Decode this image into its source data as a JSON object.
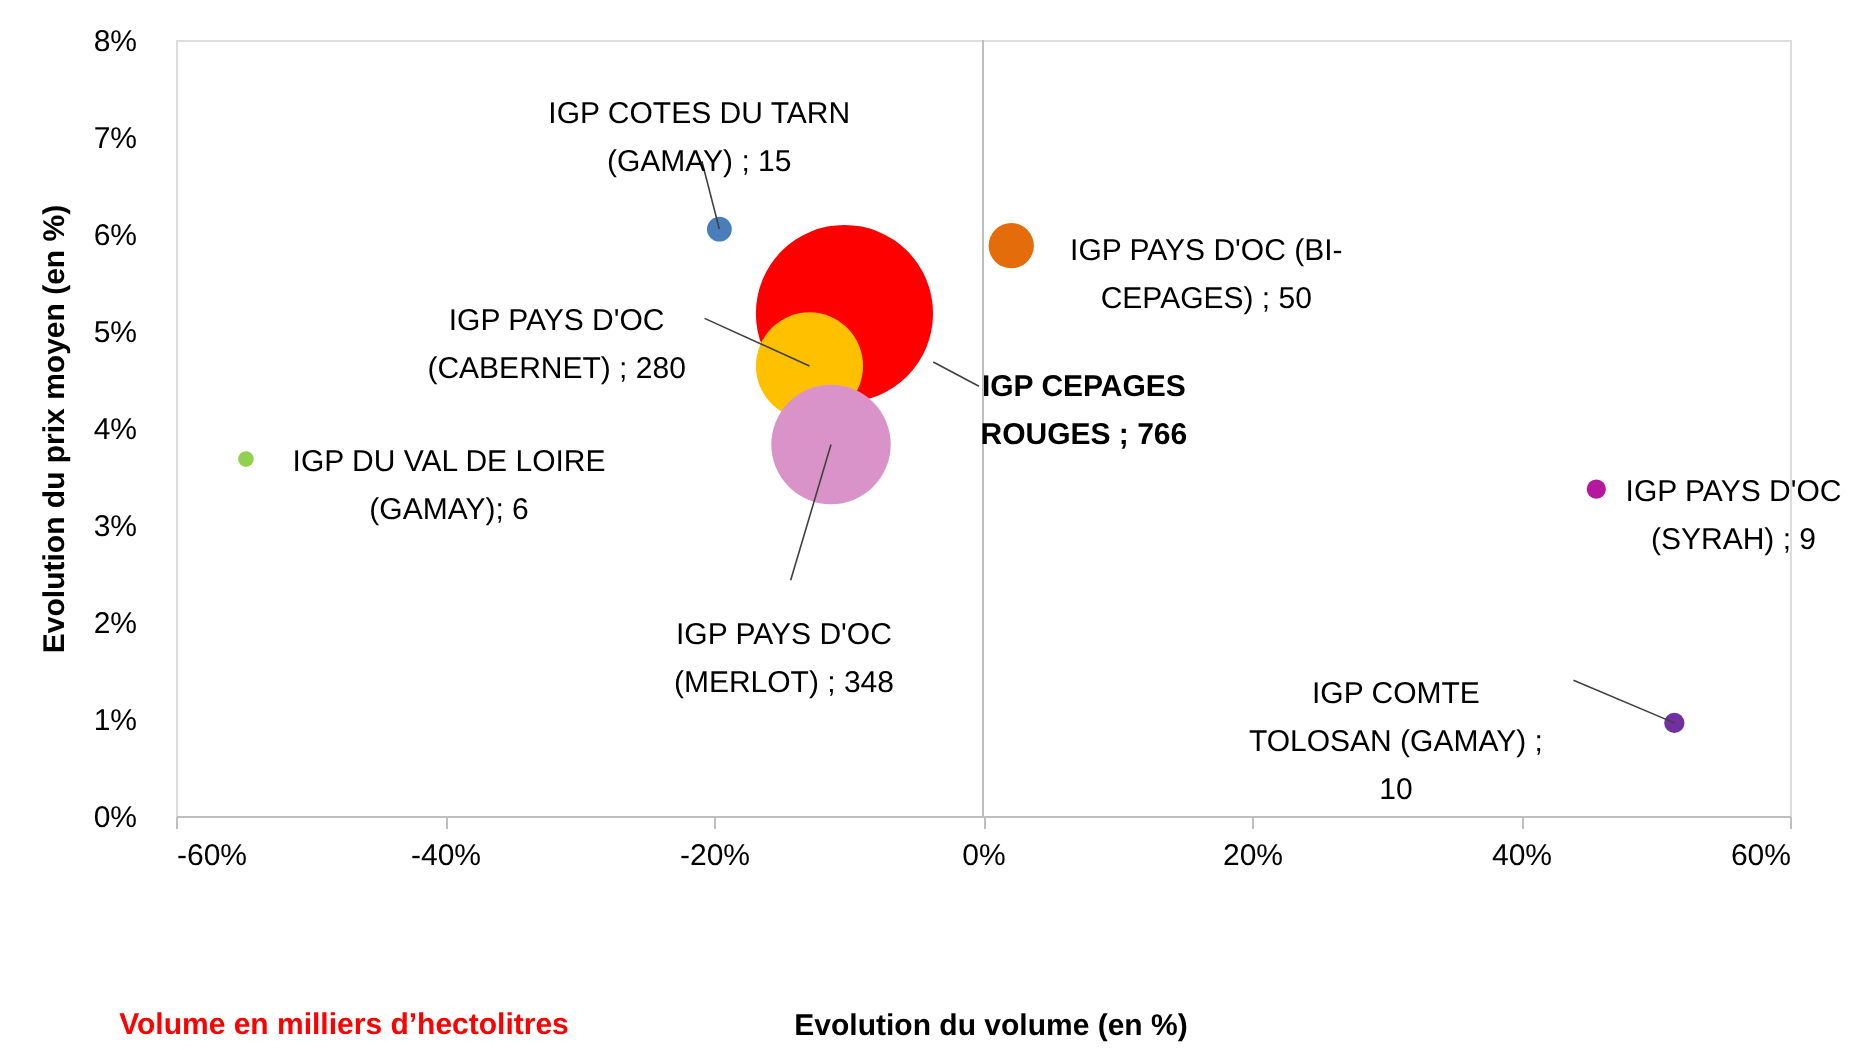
{
  "chart_data": {
    "type": "bubble",
    "xlabel": "Evolution du volume (en %)",
    "ylabel": "Evolution du prix moyen (en %)",
    "annotations": [
      "Volume en milliers d’hectolitres"
    ],
    "x": [
      -19.6,
      2.1,
      -10.3,
      -12.9,
      -54.8,
      -11.3,
      45.6,
      51.4
    ],
    "values": [
      6.05,
      5.88,
      5.18,
      4.64,
      3.68,
      3.83,
      3.37,
      0.96
    ],
    "sizes": [
      15,
      50,
      766,
      280,
      6,
      348,
      9,
      10
    ],
    "colors": [
      "#4a7ebb",
      "#e46c0a",
      "#ff0000",
      "#ffc000",
      "#92d050",
      "#d993c8",
      "#b5189e",
      "#7030a0"
    ],
    "value_labels": [
      "IGP COTES DU TARN\n(GAMAY) ; 15",
      "IGP PAYS D'OC (BI-\nCEPAGES) ; 50",
      "IGP CEPAGES\nROUGES ; 766",
      "IGP PAYS D'OC\n(CABERNET) ; 280",
      "IGP DU VAL DE LOIRE\n(GAMAY); 6",
      "IGP PAYS D'OC\n(MERLOT) ; 348",
      "IGP PAYS D'OC\n(SYRAH) ; 9",
      "IGP COMTE\nTOLOSAN (GAMAY) ;\n10"
    ],
    "xlim": [
      -60,
      60
    ],
    "xticks": [
      {
        "value": -60,
        "label": "-60%"
      },
      {
        "value": -40,
        "label": "-40%"
      },
      {
        "value": -20,
        "label": "-20%"
      },
      {
        "value": 0,
        "label": "0%"
      },
      {
        "value": 20,
        "label": "20%"
      },
      {
        "value": 40,
        "label": "40%"
      },
      {
        "value": 60,
        "label": "60%"
      }
    ],
    "ylim": [
      0,
      8
    ],
    "yticks": [
      {
        "value": 0,
        "label": "0%"
      },
      {
        "value": 1,
        "label": "1%"
      },
      {
        "value": 2,
        "label": "2%"
      },
      {
        "value": 3,
        "label": "3%"
      },
      {
        "value": 4,
        "label": "4%"
      },
      {
        "value": 5,
        "label": "5%"
      },
      {
        "value": 6,
        "label": "6%"
      },
      {
        "value": 7,
        "label": "7%"
      },
      {
        "value": 8,
        "label": "8%"
      }
    ],
    "ref_lines": [
      {
        "axis": "x",
        "value": 0,
        "color": "#bfbfbf"
      }
    ],
    "grid": false
  }
}
